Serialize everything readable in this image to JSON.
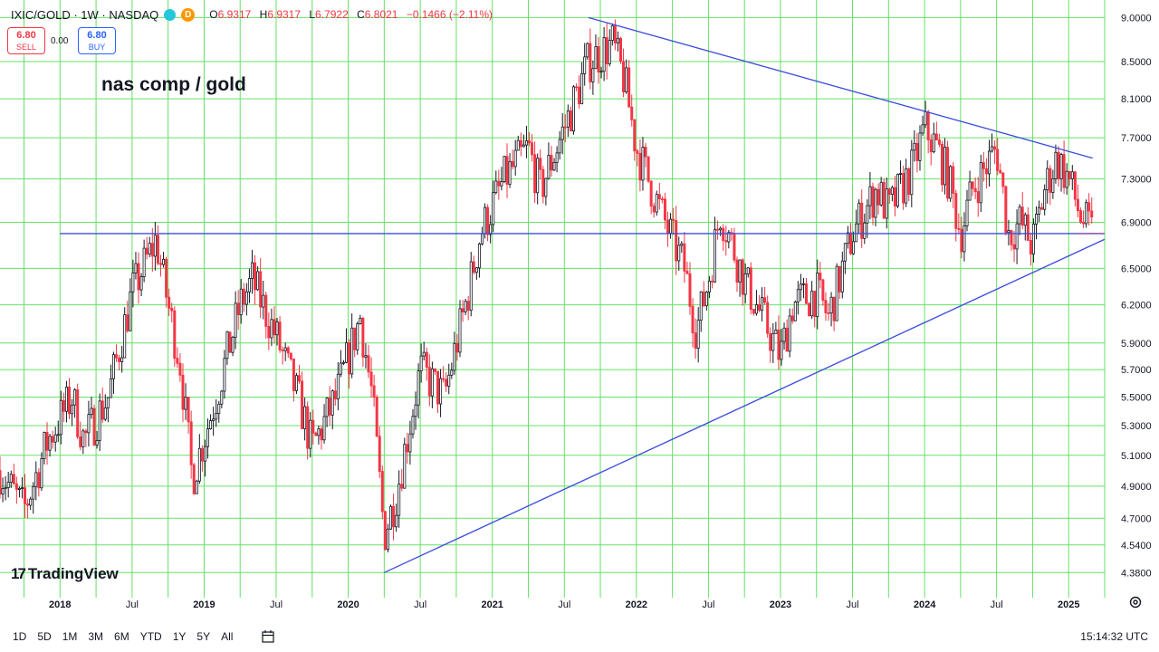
{
  "header": {
    "symbol": "IXIC/GOLD · 1W · NASDAQ",
    "status_dot_color": "#26c6da",
    "delayed_badge": "D",
    "ohlc": {
      "o_label": "O",
      "o_value": "6.9317",
      "h_label": "H",
      "h_value": "6.9317",
      "l_label": "L",
      "l_value": "6.7922",
      "c_label": "C",
      "c_value": "6.8021",
      "change": "−0.1466 (−2.11%)"
    }
  },
  "trade": {
    "sell_price": "6.80",
    "sell_label": "SELL",
    "spread": "0.00",
    "buy_price": "6.80",
    "buy_label": "BUY"
  },
  "annotation": "nas comp / gold",
  "branding": {
    "logo_text": "TradingView",
    "logo_mark": "17"
  },
  "bottom_bar": {
    "ranges": [
      "1D",
      "5D",
      "1M",
      "3M",
      "6M",
      "YTD",
      "1Y",
      "5Y",
      "All"
    ],
    "clock": "15:14:32 UTC"
  },
  "colors": {
    "up": "#131722",
    "down": "#f23645",
    "grid": "#66e066",
    "trendline": "#3b4de0",
    "accent": "#2962ff"
  },
  "chart_data": {
    "type": "candlestick",
    "interval": "1W",
    "scale": "log",
    "grid": true,
    "x_range": [
      "2017-08",
      "2025-04"
    ],
    "ylim": [
      4.3,
      9.1
    ],
    "y_ticks": [
      "9.0000",
      "8.5000",
      "8.1000",
      "7.7000",
      "7.3000",
      "6.9000",
      "6.5000",
      "6.2000",
      "5.9000",
      "5.7000",
      "5.5000",
      "5.3000",
      "5.1000",
      "4.9000",
      "4.7000",
      "4.5400",
      "4.3800"
    ],
    "x_ticks": [
      {
        "label": "2018",
        "date": "2018-01"
      },
      {
        "label": "Jul",
        "date": "2018-07"
      },
      {
        "label": "2019",
        "date": "2019-01"
      },
      {
        "label": "Jul",
        "date": "2019-07"
      },
      {
        "label": "2020",
        "date": "2020-01"
      },
      {
        "label": "Jul",
        "date": "2020-07"
      },
      {
        "label": "2021",
        "date": "2021-01"
      },
      {
        "label": "Jul",
        "date": "2021-07"
      },
      {
        "label": "2022",
        "date": "2022-01"
      },
      {
        "label": "Jul",
        "date": "2022-07"
      },
      {
        "label": "2023",
        "date": "2023-01"
      },
      {
        "label": "Jul",
        "date": "2023-07"
      },
      {
        "label": "2024",
        "date": "2024-01"
      },
      {
        "label": "Jul",
        "date": "2024-07"
      },
      {
        "label": "2025",
        "date": "2025-01"
      }
    ],
    "price_path": [
      [
        "2017-08",
        5.0
      ],
      [
        "2017-10",
        4.75
      ],
      [
        "2017-12",
        5.2
      ],
      [
        "2018-02",
        5.5
      ],
      [
        "2018-03",
        5.2
      ],
      [
        "2018-05",
        5.5
      ],
      [
        "2018-07",
        6.3
      ],
      [
        "2018-09",
        6.75
      ],
      [
        "2018-10",
        6.2
      ],
      [
        "2018-11",
        5.75
      ],
      [
        "2018-12",
        4.95
      ],
      [
        "2019-02",
        5.5
      ],
      [
        "2019-04",
        6.2
      ],
      [
        "2019-05",
        6.4
      ],
      [
        "2019-07",
        5.95
      ],
      [
        "2019-09",
        5.45
      ],
      [
        "2019-10",
        5.15
      ],
      [
        "2019-12",
        5.5
      ],
      [
        "2020-02",
        6.1
      ],
      [
        "2020-03",
        5.5
      ],
      [
        "2020-04",
        4.6
      ],
      [
        "2020-05",
        4.85
      ],
      [
        "2020-07",
        5.7
      ],
      [
        "2020-09",
        5.5
      ],
      [
        "2020-11",
        6.3
      ],
      [
        "2020-12",
        6.8
      ],
      [
        "2021-02",
        7.3
      ],
      [
        "2021-04",
        7.6
      ],
      [
        "2021-05",
        7.2
      ],
      [
        "2021-07",
        7.8
      ],
      [
        "2021-09",
        8.5
      ],
      [
        "2021-11",
        8.7
      ],
      [
        "2021-12",
        8.3
      ],
      [
        "2022-01",
        7.6
      ],
      [
        "2022-03",
        7.0
      ],
      [
        "2022-05",
        6.5
      ],
      [
        "2022-06",
        6.0
      ],
      [
        "2022-07",
        6.4
      ],
      [
        "2022-08",
        7.0
      ],
      [
        "2022-10",
        6.4
      ],
      [
        "2022-12",
        6.0
      ],
      [
        "2023-01",
        5.8
      ],
      [
        "2023-02",
        6.2
      ],
      [
        "2023-04",
        6.3
      ],
      [
        "2023-05",
        6.1
      ],
      [
        "2023-07",
        6.8
      ],
      [
        "2023-09",
        7.2
      ],
      [
        "2023-10",
        7.0
      ],
      [
        "2023-12",
        7.4
      ],
      [
        "2024-01",
        7.8
      ],
      [
        "2024-02",
        7.6
      ],
      [
        "2024-03",
        7.3
      ],
      [
        "2024-04",
        6.8
      ],
      [
        "2024-05",
        7.2
      ],
      [
        "2024-07",
        7.6
      ],
      [
        "2024-08",
        6.8
      ],
      [
        "2024-09",
        6.9
      ],
      [
        "2024-10",
        6.7
      ],
      [
        "2024-11",
        7.2
      ],
      [
        "2024-12",
        7.5
      ],
      [
        "2025-01",
        7.3
      ],
      [
        "2025-02",
        6.95
      ],
      [
        "2025-03",
        6.8
      ]
    ],
    "last_close": 6.8021,
    "trendlines": [
      {
        "from": [
          "2021-09",
          9.0
        ],
        "to": [
          "2025-03",
          7.5
        ]
      },
      {
        "from": [
          "2020-04",
          4.38
        ],
        "to": [
          "2025-04",
          6.75
        ]
      },
      {
        "from": [
          "2018-01",
          6.8
        ],
        "to": [
          "2025-04",
          6.8
        ]
      }
    ]
  }
}
